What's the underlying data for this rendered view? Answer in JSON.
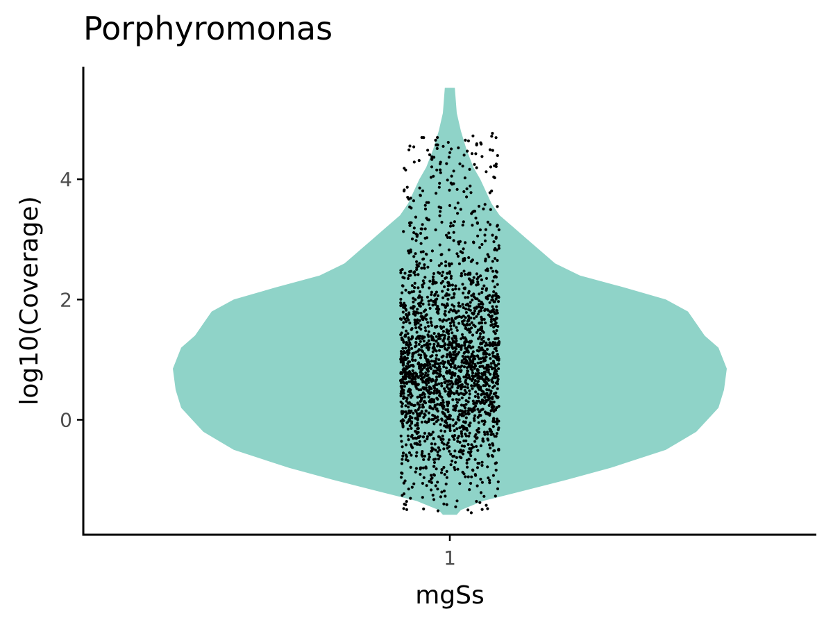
{
  "chart_data": {
    "type": "violin",
    "title": "Porphyromonas",
    "xlabel": "mgSs",
    "ylabel": "log10(Coverage)",
    "categories": [
      "1"
    ],
    "x_tick_labels": [
      "1"
    ],
    "y_ticks": [
      0,
      2,
      4
    ],
    "ylim": [
      -1.9,
      5.85
    ],
    "grid": false,
    "legend": "none",
    "colors": {
      "violin_fill": "#8fd3c8",
      "points": "#000000",
      "axis": "#000000",
      "tick_label": "#4d4d4d"
    },
    "violin": {
      "category": "1",
      "y_range": [
        -1.58,
        5.52
      ],
      "density_profile": [
        {
          "y": -1.58,
          "w": 0.025
        },
        {
          "y": -1.5,
          "w": 0.04
        },
        {
          "y": -1.35,
          "w": 0.12
        },
        {
          "y": -1.2,
          "w": 0.25
        },
        {
          "y": -1.0,
          "w": 0.42
        },
        {
          "y": -0.8,
          "w": 0.58
        },
        {
          "y": -0.5,
          "w": 0.78
        },
        {
          "y": -0.2,
          "w": 0.89
        },
        {
          "y": 0.0,
          "w": 0.93
        },
        {
          "y": 0.2,
          "w": 0.97
        },
        {
          "y": 0.5,
          "w": 0.99
        },
        {
          "y": 0.85,
          "w": 1.0
        },
        {
          "y": 1.2,
          "w": 0.97
        },
        {
          "y": 1.4,
          "w": 0.92
        },
        {
          "y": 1.6,
          "w": 0.89
        },
        {
          "y": 1.8,
          "w": 0.86
        },
        {
          "y": 2.0,
          "w": 0.78
        },
        {
          "y": 2.2,
          "w": 0.63
        },
        {
          "y": 2.4,
          "w": 0.47
        },
        {
          "y": 2.6,
          "w": 0.38
        },
        {
          "y": 2.8,
          "w": 0.33
        },
        {
          "y": 3.0,
          "w": 0.28
        },
        {
          "y": 3.2,
          "w": 0.23
        },
        {
          "y": 3.4,
          "w": 0.18
        },
        {
          "y": 3.6,
          "w": 0.15
        },
        {
          "y": 3.8,
          "w": 0.13
        },
        {
          "y": 4.0,
          "w": 0.11
        },
        {
          "y": 4.2,
          "w": 0.085
        },
        {
          "y": 4.5,
          "w": 0.06
        },
        {
          "y": 4.8,
          "w": 0.04
        },
        {
          "y": 5.1,
          "w": 0.025
        },
        {
          "y": 5.52,
          "w": 0.018
        }
      ]
    },
    "jitter_points": {
      "approx_count": 2200,
      "y_range": [
        -1.55,
        5.52
      ],
      "jitter_width": 0.4
    }
  }
}
